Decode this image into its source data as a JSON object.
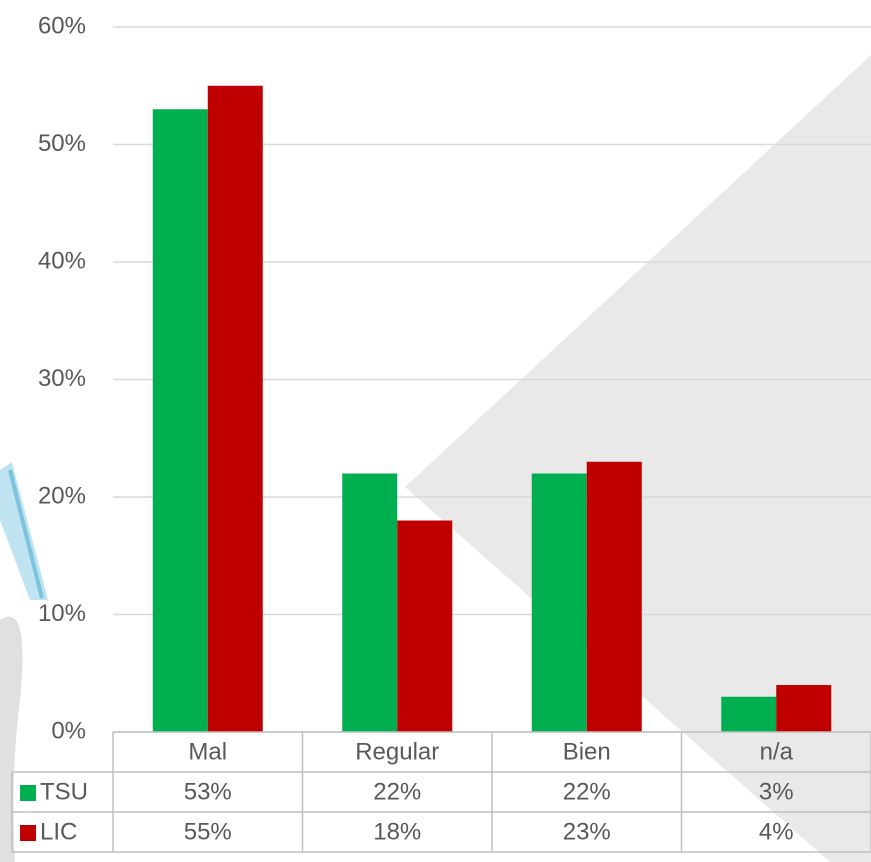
{
  "chart_data": {
    "type": "bar",
    "categories": [
      "Mal",
      "Regular",
      "Bien",
      "n/a"
    ],
    "series": [
      {
        "name": "TSU",
        "color": "#00b050",
        "values": [
          53,
          22,
          22,
          3
        ],
        "value_labels": [
          "53%",
          "22%",
          "22%",
          "3%"
        ]
      },
      {
        "name": "LIC",
        "color": "#c00000",
        "values": [
          55,
          18,
          23,
          4
        ],
        "value_labels": [
          "55%",
          "18%",
          "23%",
          "4%"
        ]
      }
    ],
    "ylim": [
      0,
      60
    ],
    "yticks": [
      {
        "value": 0,
        "label": "0%"
      },
      {
        "value": 10,
        "label": "10%"
      },
      {
        "value": 20,
        "label": "20%"
      },
      {
        "value": 30,
        "label": "30%"
      },
      {
        "value": 40,
        "label": "40%"
      },
      {
        "value": 50,
        "label": "50%"
      },
      {
        "value": 60,
        "label": "60%"
      }
    ],
    "grid": true
  }
}
